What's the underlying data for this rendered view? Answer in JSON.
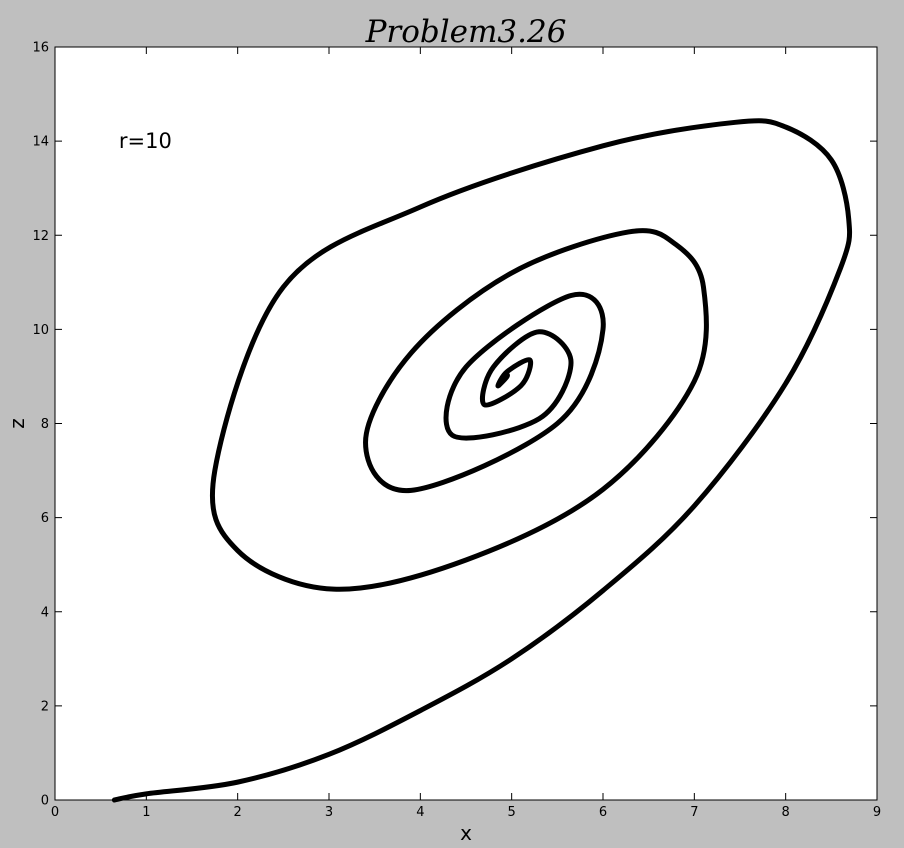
{
  "chart_data": {
    "type": "line",
    "title": "Problem3.26",
    "xlabel": "x",
    "ylabel": "z",
    "xlim": [
      0,
      9
    ],
    "ylim": [
      0,
      16
    ],
    "xticks": [
      "0",
      "1",
      "2",
      "3",
      "4",
      "5",
      "6",
      "7",
      "8",
      "9"
    ],
    "yticks": [
      "0",
      "2",
      "4",
      "6",
      "8",
      "10",
      "12",
      "14",
      "16"
    ],
    "grid": false,
    "line_color": "#000000",
    "background_color": "#ffffff",
    "figure_color": "#bfbfbf",
    "annotation": {
      "text": "r=10",
      "x": 0.7,
      "y": 14.0
    },
    "series": [
      {
        "x": [
          0.65,
          1.0,
          2.0,
          3.0,
          4.0,
          5.0,
          6.0,
          7.0,
          8.0,
          8.6,
          8.69,
          8.5,
          8.0,
          7.45,
          6.0,
          4.0,
          2.5,
          1.75,
          2.0,
          3.05,
          4.5,
          6.0,
          7.0,
          7.1,
          6.8,
          6.28,
          5.0,
          3.9,
          3.4,
          3.9,
          5.5,
          6.0,
          5.65,
          4.5,
          4.35,
          5.3,
          5.65,
          5.3,
          4.8,
          4.7,
          5.1,
          5.2,
          4.95,
          4.85,
          4.95,
          4.93,
          4.9
        ],
        "y": [
          0.0,
          0.13,
          0.38,
          0.97,
          1.9,
          3.0,
          4.45,
          6.25,
          8.85,
          11.3,
          12.35,
          13.6,
          14.3,
          14.4,
          13.9,
          12.6,
          10.9,
          7.0,
          5.3,
          4.48,
          5.1,
          6.6,
          8.9,
          10.9,
          11.8,
          12.07,
          11.2,
          9.5,
          7.6,
          6.58,
          8.0,
          10.0,
          10.72,
          9.2,
          7.75,
          8.1,
          9.3,
          9.95,
          9.2,
          8.4,
          8.8,
          9.35,
          9.1,
          8.8,
          9.0,
          9.05,
          8.95
        ]
      }
    ]
  }
}
